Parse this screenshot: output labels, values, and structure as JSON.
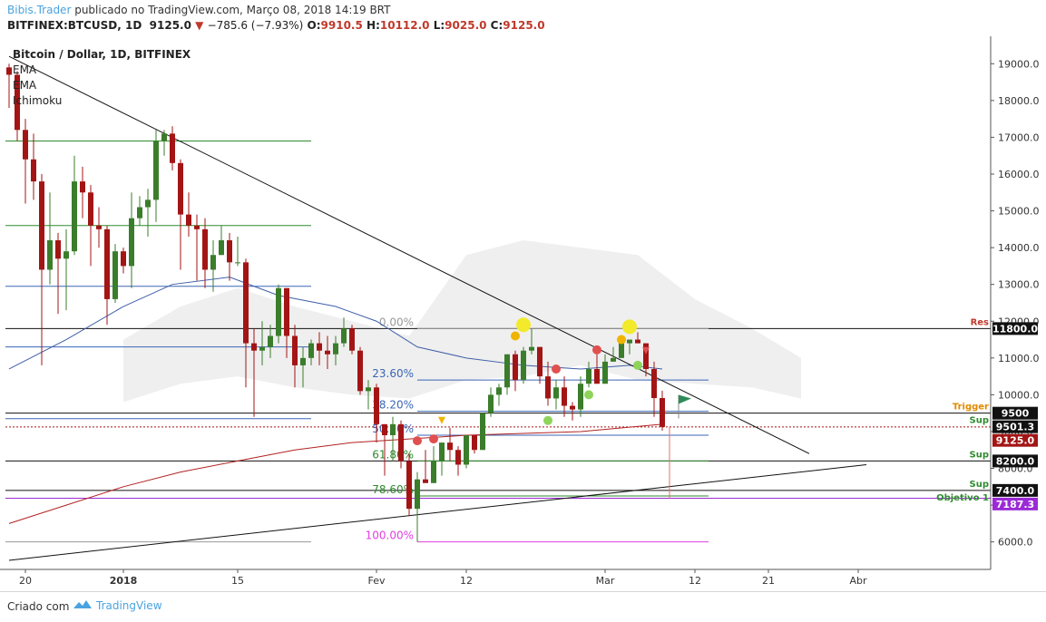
{
  "header": {
    "brand": "Bibis.Trader",
    "published": "publicado no TradingView.com, Março 08, 2018 14:19 BRT",
    "symbol": "BITFINEX:BTCUSD, 1D",
    "last": "9125.0",
    "change": "−785.6 (−7.93%)",
    "o_label": "O:",
    "o": "9910.5",
    "h_label": "H:",
    "h": "10112.0",
    "l_label": "L:",
    "l": "9025.0",
    "c_label": "C:",
    "c": "9125.0"
  },
  "legend": {
    "title": "Bitcoin / Dollar, 1D, BITFINEX",
    "ind1": "EMA",
    "ind2": "EMA",
    "ind3": "Ichimoku"
  },
  "footer": {
    "created": "Criado com",
    "brand": "TradingView"
  },
  "colors": {
    "up": "#3a7d2b",
    "down": "#a31515",
    "ema_fast": "#3f5fa8",
    "ema_slow": "#b22222",
    "cloud": "#ececec",
    "fib_blue": "#3a66b5",
    "fib_green": "#2e8b2e",
    "fib_magenta": "#e040e0",
    "brand": "#4aa3df"
  },
  "chart_data": {
    "type": "candlestick",
    "title": "Bitcoin / Dollar, 1D, BITFINEX",
    "xlabel": "",
    "ylabel": "",
    "ylim": [
      5400,
      19500
    ],
    "y_ticks": [
      "19000.0",
      "18000.0",
      "17000.0",
      "16000.0",
      "15000.0",
      "14000.0",
      "13000.0",
      "12000.0",
      "11000.0",
      "10000.0",
      "9000.0",
      "8000.0",
      "7000.0",
      "6000.0"
    ],
    "x_ticks": [
      {
        "label": "20",
        "date": "2017-12-20"
      },
      {
        "label": "2018",
        "date": "2018-01-01"
      },
      {
        "label": "15",
        "date": "2018-01-15"
      },
      {
        "label": "Fev",
        "date": "2018-02-01"
      },
      {
        "label": "12",
        "date": "2018-02-12"
      },
      {
        "label": "Mar",
        "date": "2018-03-01"
      },
      {
        "label": "12",
        "date": "2018-03-12"
      },
      {
        "label": "21",
        "date": "2018-03-21"
      },
      {
        "label": "Abr",
        "date": "2018-04-01"
      }
    ],
    "candles": [
      [
        "2017-12-18",
        18900,
        19000,
        17800,
        18700
      ],
      [
        "2017-12-19",
        18700,
        18800,
        16900,
        17200
      ],
      [
        "2017-12-20",
        17200,
        17500,
        15200,
        16400
      ],
      [
        "2017-12-21",
        16400,
        17100,
        15300,
        15800
      ],
      [
        "2017-12-22",
        15800,
        16000,
        10800,
        13400
      ],
      [
        "2017-12-23",
        13400,
        15500,
        13000,
        14200
      ],
      [
        "2017-12-24",
        14200,
        14400,
        12200,
        13700
      ],
      [
        "2017-12-25",
        13700,
        14500,
        12300,
        13900
      ],
      [
        "2017-12-26",
        13900,
        16500,
        13800,
        15800
      ],
      [
        "2017-12-27",
        15800,
        16200,
        14800,
        15500
      ],
      [
        "2017-12-28",
        15500,
        15700,
        13500,
        14600
      ],
      [
        "2017-12-29",
        14600,
        15100,
        14000,
        14500
      ],
      [
        "2017-12-30",
        14500,
        14600,
        11900,
        12600
      ],
      [
        "2017-12-31",
        12600,
        14100,
        12500,
        13900
      ],
      [
        "2018-01-01",
        13900,
        14000,
        13300,
        13500
      ],
      [
        "2018-01-02",
        13500,
        15500,
        12900,
        14800
      ],
      [
        "2018-01-03",
        14800,
        15400,
        14600,
        15100
      ],
      [
        "2018-01-04",
        15100,
        15600,
        14300,
        15300
      ],
      [
        "2018-01-05",
        15300,
        17200,
        14700,
        16900
      ],
      [
        "2018-01-06",
        16900,
        17200,
        16500,
        17100
      ],
      [
        "2018-01-07",
        17100,
        17300,
        16100,
        16300
      ],
      [
        "2018-01-08",
        16300,
        16400,
        13400,
        14900
      ],
      [
        "2018-01-09",
        14900,
        15500,
        14300,
        14600
      ],
      [
        "2018-01-10",
        14600,
        14900,
        13100,
        14500
      ],
      [
        "2018-01-11",
        14500,
        14800,
        12900,
        13400
      ],
      [
        "2018-01-12",
        13400,
        14200,
        12800,
        13800
      ],
      [
        "2018-01-13",
        13800,
        14600,
        13800,
        14200
      ],
      [
        "2018-01-14",
        14200,
        14400,
        13100,
        13600
      ],
      [
        "2018-01-15",
        13600,
        14300,
        13500,
        13600
      ],
      [
        "2018-01-16",
        13600,
        13700,
        10200,
        11400
      ],
      [
        "2018-01-17",
        11400,
        11800,
        9400,
        11200
      ],
      [
        "2018-01-18",
        11200,
        12000,
        10800,
        11300
      ],
      [
        "2018-01-19",
        11300,
        11900,
        11000,
        11600
      ],
      [
        "2018-01-20",
        11600,
        13000,
        11400,
        12900
      ],
      [
        "2018-01-21",
        12900,
        12900,
        11000,
        11600
      ],
      [
        "2018-01-22",
        11600,
        11900,
        10200,
        10800
      ],
      [
        "2018-01-23",
        10800,
        11300,
        10200,
        11000
      ],
      [
        "2018-01-24",
        11000,
        11500,
        10800,
        11400
      ],
      [
        "2018-01-25",
        11400,
        11700,
        10800,
        11200
      ],
      [
        "2018-01-26",
        11200,
        11600,
        10700,
        11100
      ],
      [
        "2018-01-27",
        11100,
        11600,
        10800,
        11400
      ],
      [
        "2018-01-28",
        11400,
        12100,
        11300,
        11800
      ],
      [
        "2018-01-29",
        11800,
        11900,
        11100,
        11200
      ],
      [
        "2018-01-30",
        11200,
        11300,
        10000,
        10100
      ],
      [
        "2018-01-31",
        10100,
        10400,
        9600,
        10200
      ],
      [
        "2018-02-01",
        10200,
        10300,
        8700,
        9200
      ],
      [
        "2018-02-02",
        9200,
        9200,
        7800,
        8900
      ],
      [
        "2018-02-03",
        8900,
        9400,
        8200,
        9200
      ],
      [
        "2018-02-04",
        9200,
        9300,
        8000,
        8200
      ],
      [
        "2018-02-05",
        8200,
        8400,
        6700,
        6900
      ],
      [
        "2018-02-06",
        6900,
        7900,
        6000,
        7700
      ],
      [
        "2018-02-07",
        7700,
        8500,
        7600,
        7600
      ],
      [
        "2018-02-08",
        7600,
        8600,
        7600,
        8200
      ],
      [
        "2018-02-09",
        8200,
        8700,
        7800,
        8700
      ],
      [
        "2018-02-10",
        8700,
        9100,
        8200,
        8500
      ],
      [
        "2018-02-11",
        8500,
        8600,
        7800,
        8100
      ],
      [
        "2018-02-12",
        8100,
        8900,
        8000,
        8900
      ],
      [
        "2018-02-13",
        8900,
        8900,
        8400,
        8500
      ],
      [
        "2018-02-14",
        8500,
        9500,
        8500,
        9500
      ],
      [
        "2018-02-15",
        9500,
        10200,
        9400,
        10000
      ],
      [
        "2018-02-16",
        10000,
        10300,
        9700,
        10200
      ],
      [
        "2018-02-17",
        10200,
        11100,
        10000,
        11100
      ],
      [
        "2018-02-18",
        11100,
        11200,
        10100,
        10400
      ],
      [
        "2018-02-19",
        10400,
        11300,
        10300,
        11200
      ],
      [
        "2018-02-20",
        11200,
        11800,
        11100,
        11300
      ],
      [
        "2018-02-21",
        11300,
        11300,
        10300,
        10500
      ],
      [
        "2018-02-22",
        10500,
        10900,
        9700,
        9900
      ],
      [
        "2018-02-23",
        9900,
        10400,
        9600,
        10200
      ],
      [
        "2018-02-24",
        10200,
        10500,
        9400,
        9700
      ],
      [
        "2018-02-25",
        9700,
        9800,
        9300,
        9600
      ],
      [
        "2018-02-26",
        9600,
        10500,
        9400,
        10300
      ],
      [
        "2018-02-27",
        10300,
        10900,
        10200,
        10700
      ],
      [
        "2018-02-28",
        10700,
        11100,
        10300,
        10300
      ],
      [
        "2018-03-01",
        10300,
        11100,
        10300,
        10900
      ],
      [
        "2018-03-02",
        10900,
        11300,
        10900,
        11000
      ],
      [
        "2018-03-03",
        11000,
        11500,
        11000,
        11400
      ],
      [
        "2018-03-04",
        11400,
        11500,
        11100,
        11500
      ],
      [
        "2018-03-05",
        11500,
        11700,
        11400,
        11400
      ],
      [
        "2018-03-06",
        11400,
        11400,
        10500,
        10700
      ],
      [
        "2018-03-07",
        10700,
        10900,
        9400,
        9910
      ],
      [
        "2018-03-08",
        9910,
        10112,
        9025,
        9125
      ]
    ],
    "ema_fast": [
      [
        "2017-12-18",
        10700
      ],
      [
        "2017-12-25",
        11500
      ],
      [
        "2018-01-01",
        12400
      ],
      [
        "2018-01-07",
        13000
      ],
      [
        "2018-01-14",
        13200
      ],
      [
        "2018-01-20",
        12700
      ],
      [
        "2018-01-27",
        12400
      ],
      [
        "2018-02-01",
        12000
      ],
      [
        "2018-02-06",
        11300
      ],
      [
        "2018-02-12",
        11000
      ],
      [
        "2018-02-19",
        10800
      ],
      [
        "2018-02-26",
        10700
      ],
      [
        "2018-03-04",
        10800
      ],
      [
        "2018-03-08",
        10700
      ]
    ],
    "ema_slow": [
      [
        "2017-12-18",
        6500
      ],
      [
        "2017-12-25",
        7000
      ],
      [
        "2018-01-01",
        7500
      ],
      [
        "2018-01-08",
        7900
      ],
      [
        "2018-01-15",
        8200
      ],
      [
        "2018-01-22",
        8500
      ],
      [
        "2018-01-29",
        8700
      ],
      [
        "2018-02-05",
        8800
      ],
      [
        "2018-02-12",
        8900
      ],
      [
        "2018-02-19",
        8950
      ],
      [
        "2018-02-26",
        9000
      ],
      [
        "2018-03-08",
        9200
      ]
    ],
    "ichimoku_cloud": [
      [
        "2018-01-01",
        11500,
        9800
      ],
      [
        "2018-01-08",
        12400,
        10300
      ],
      [
        "2018-01-15",
        12900,
        10500
      ],
      [
        "2018-01-22",
        12400,
        10200
      ],
      [
        "2018-01-29",
        12000,
        10000
      ],
      [
        "2018-02-05",
        11600,
        9900
      ],
      [
        "2018-02-12",
        13800,
        10400
      ],
      [
        "2018-02-19",
        14200,
        10500
      ],
      [
        "2018-02-26",
        14000,
        10800
      ],
      [
        "2018-03-05",
        13800,
        10400
      ],
      [
        "2018-03-12",
        12600,
        10300
      ],
      [
        "2018-03-19",
        11800,
        10200
      ],
      [
        "2018-03-25",
        11000,
        9900
      ]
    ],
    "fib_levels": [
      {
        "label": "0.00%",
        "value": 11800,
        "color": "#999999"
      },
      {
        "label": "23.60%",
        "value": 10400,
        "color": "#3a66b5"
      },
      {
        "label": "38.20%",
        "value": 9550,
        "color": "#3a66b5"
      },
      {
        "label": "50.00%",
        "value": 8900,
        "color": "#3a66b5"
      },
      {
        "label": "61.80%",
        "value": 8200,
        "color": "#2e8b2e"
      },
      {
        "label": "78.60%",
        "value": 7250,
        "color": "#2e8b2e"
      },
      {
        "label": "100.00%",
        "value": 6000,
        "color": "#e040e0"
      }
    ],
    "horizontal_levels": [
      {
        "value": 16900,
        "color": "#2e8b2e"
      },
      {
        "value": 14600,
        "color": "#2e8b2e"
      },
      {
        "value": 12950,
        "color": "#3a66b5"
      },
      {
        "value": 11300,
        "color": "#3a66b5"
      },
      {
        "value": 9350,
        "color": "#3a66b5"
      },
      {
        "value": 6000,
        "color": "#999999"
      }
    ],
    "price_labels": [
      {
        "text": "11800.0",
        "value": 11800,
        "tag": "Res",
        "tag_color": "#c0392b",
        "bg": "#111111"
      },
      {
        "text": "9500",
        "value": 9500,
        "tag": "Trigger",
        "tag_color": "#e08a00",
        "bg": "#111111"
      },
      {
        "text": "9501.3",
        "value": 9501.3,
        "tag": "Sup",
        "tag_color": "#2e8b2e",
        "bg": "#111111"
      },
      {
        "text": "9125.0",
        "value": 9125,
        "tag": "",
        "tag_color": "",
        "bg": "#a31515"
      },
      {
        "text": "8200.0",
        "value": 8200,
        "tag": "Sup",
        "tag_color": "#2e8b2e",
        "bg": "#111111"
      },
      {
        "text": "7400.0",
        "value": 7400,
        "tag": "Sup",
        "tag_color": "#2e8b2e",
        "bg": "#111111"
      },
      {
        "text": "7187.3",
        "value": 7187.3,
        "tag": "Objetivo 1",
        "tag_color": "#2e8b2e",
        "bg": "#9b2ad6"
      }
    ],
    "trendlines": [
      {
        "from": [
          "2017-12-18",
          19200
        ],
        "to": [
          "2018-03-26",
          8400
        ]
      },
      {
        "from": [
          "2017-12-18",
          5500
        ],
        "to": [
          "2018-04-02",
          8100
        ]
      }
    ],
    "markers": [
      {
        "date": "2018-02-19",
        "value": 11900,
        "kind": "circle",
        "color": "#f2ea2a",
        "r": 8
      },
      {
        "date": "2018-02-18",
        "value": 11600,
        "kind": "circle",
        "color": "#f0b400",
        "r": 5
      },
      {
        "date": "2018-03-04",
        "value": 11850,
        "kind": "circle",
        "color": "#f2ea2a",
        "r": 8
      },
      {
        "date": "2018-03-03",
        "value": 11500,
        "kind": "circle",
        "color": "#f0b400",
        "r": 5
      },
      {
        "date": "2018-02-28",
        "value": 11220,
        "kind": "circle",
        "color": "#e05050",
        "r": 5
      },
      {
        "date": "2018-02-23",
        "value": 10700,
        "kind": "circle",
        "color": "#e05050",
        "r": 5
      },
      {
        "date": "2018-02-08",
        "value": 8800,
        "kind": "circle",
        "color": "#e05050",
        "r": 5
      },
      {
        "date": "2018-02-06",
        "value": 8750,
        "kind": "circle",
        "color": "#e05050",
        "r": 5
      },
      {
        "date": "2018-03-05",
        "value": 10800,
        "kind": "circle",
        "color": "#8fd45a",
        "r": 5
      },
      {
        "date": "2018-02-27",
        "value": 10000,
        "kind": "circle",
        "color": "#8fd45a",
        "r": 5
      },
      {
        "date": "2018-02-22",
        "value": 9300,
        "kind": "circle",
        "color": "#8fd45a",
        "r": 5
      },
      {
        "date": "2018-02-09",
        "value": 9300,
        "kind": "triangle-down",
        "color": "#f0b400",
        "r": 5
      },
      {
        "date": "2018-03-06",
        "value": 11200,
        "kind": "triangle-down",
        "color": "#e05050",
        "r": 5
      }
    ],
    "target_line": {
      "date": "2018-03-08",
      "from": 9125,
      "to": 7187.3,
      "color": "#e07070"
    },
    "flag": {
      "date": "2018-03-12",
      "value": 9850,
      "color": "#2e8b57"
    }
  }
}
